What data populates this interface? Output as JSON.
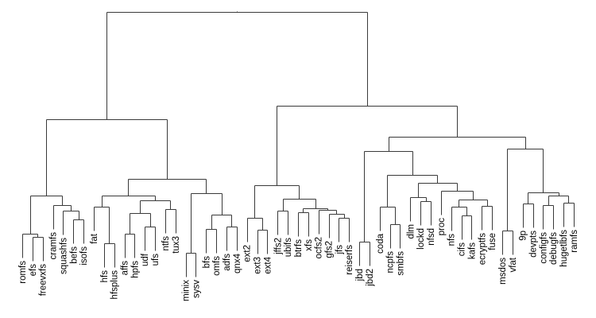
{
  "chart_data": {
    "type": "dendrogram",
    "title": "",
    "hang": 3.0,
    "tree": {
      "h": 30.5,
      "c": [
        {
          "h": 17.0,
          "c": [
            {
              "h": 7.4,
              "c": [
                {
                  "h": 2.6,
                  "c": [
                    "romfs",
                    {
                      "h": 2.2,
                      "c": [
                        "efs",
                        "freevxfs"
                      ]
                    }
                  ]
                },
                {
                  "h": 6.2,
                  "c": [
                    "cramfs",
                    {
                      "h": 5.5,
                      "c": [
                        "squashfs",
                        {
                          "h": 4.4,
                          "c": [
                            "befs",
                            "isofs"
                          ]
                        }
                      ]
                    }
                  ]
                }
              ]
            },
            {
              "h": 9.5,
              "c": [
                {
                  "h": 7.4,
                  "c": [
                    {
                      "h": 6.0,
                      "c": [
                        "fat",
                        {
                          "h": 1.4,
                          "c": [
                            "hfs",
                            "hfsplus"
                          ]
                        }
                      ]
                    },
                    {
                      "h": 6.8,
                      "c": [
                        {
                          "h": 5.2,
                          "c": [
                            {
                              "h": 2.6,
                              "c": [
                                "affs",
                                "hpfs"
                              ]
                            },
                            {
                              "h": 3.5,
                              "c": [
                                "udf",
                                "ufs"
                              ]
                            }
                          ]
                        },
                        {
                          "h": 5.7,
                          "c": [
                            "ntfs",
                            "tux3"
                          ]
                        }
                      ]
                    }
                  ]
                },
                {
                  "h": 7.7,
                  "c": [
                    {
                      "h": 0.2,
                      "c": [
                        "minix",
                        "sysv"
                      ]
                    },
                    {
                      "h": 5.0,
                      "c": [
                        {
                          "h": 3.2,
                          "c": [
                            "bfs",
                            "omfs"
                          ]
                        },
                        {
                          "h": 3.5,
                          "c": [
                            "adfs",
                            "qnx4"
                          ]
                        }
                      ]
                    }
                  ]
                }
              ]
            }
          ]
        },
        {
          "h": 18.7,
          "c": [
            {
              "h": 8.7,
              "c": [
                {
                  "h": 4.6,
                  "c": [
                    "ext2",
                    {
                      "h": 3.1,
                      "c": [
                        "ext3",
                        "ext4"
                      ]
                    }
                  ]
                },
                {
                  "h": 7.0,
                  "c": [
                    {
                      "h": 5.5,
                      "c": [
                        "jffs2",
                        "ubifs"
                      ]
                    },
                    {
                      "h": 5.8,
                      "c": [
                        {
                          "h": 5.3,
                          "c": [
                            "btrfs",
                            "xfs"
                          ]
                        },
                        {
                          "h": 5.6,
                          "c": [
                            "ocfs2",
                            {
                              "h": 5.1,
                              "c": [
                                "gfs2",
                                {
                                  "h": 4.6,
                                  "c": [
                                    "jfs",
                                    "reiserfs"
                                  ]
                                }
                              ]
                            }
                          ]
                        }
                      ]
                    }
                  ]
                }
              ]
            },
            {
              "h": 14.8,
              "c": [
                {
                  "h": 13.0,
                  "c": [
                    {
                      "h": 1.6,
                      "c": [
                        "jbd",
                        "jbd2"
                      ]
                    },
                    {
                      "h": 10.0,
                      "c": [
                        {
                          "h": 6.0,
                          "c": [
                            "coda",
                            {
                              "h": 3.8,
                              "c": [
                                "ncpfs",
                                "smbfs"
                              ]
                            }
                          ]
                        },
                        {
                          "h": 9.0,
                          "c": [
                            {
                              "h": 7.2,
                              "c": [
                                "dlm",
                                {
                                  "h": 6.7,
                                  "c": [
                                    "lockd",
                                    "nfsd"
                                  ]
                                }
                              ]
                            },
                            {
                              "h": 8.0,
                              "c": [
                                "proc",
                                {
                                  "h": 6.9,
                                  "c": [
                                    {
                                      "h": 6.0,
                                      "c": [
                                        "nfs",
                                        {
                                          "h": 4.9,
                                          "c": [
                                            "cifs",
                                            "kafs"
                                          ]
                                        }
                                      ]
                                    },
                                    {
                                      "h": 6.1,
                                      "c": [
                                        "ecryptfs",
                                        "fuse"
                                      ]
                                    }
                                  ]
                                }
                              ]
                            }
                          ]
                        }
                      ]
                    }
                  ]
                },
                {
                  "h": 13.3,
                  "c": [
                    {
                      "h": 3.0,
                      "c": [
                        "msdos",
                        "vfat"
                      ]
                    },
                    {
                      "h": 7.8,
                      "c": [
                        {
                          "h": 6.4,
                          "c": [
                            "9p",
                            "devpts"
                          ]
                        },
                        {
                          "h": 7.4,
                          "c": [
                            {
                              "h": 6.2,
                              "c": [
                                "configfs",
                                "debugfs"
                              ]
                            },
                            {
                              "h": 6.5,
                              "c": [
                                "hugetlbfs",
                                "ramfs"
                              ]
                            }
                          ]
                        }
                      ]
                    }
                  ]
                }
              ]
            }
          ]
        }
      ]
    }
  }
}
